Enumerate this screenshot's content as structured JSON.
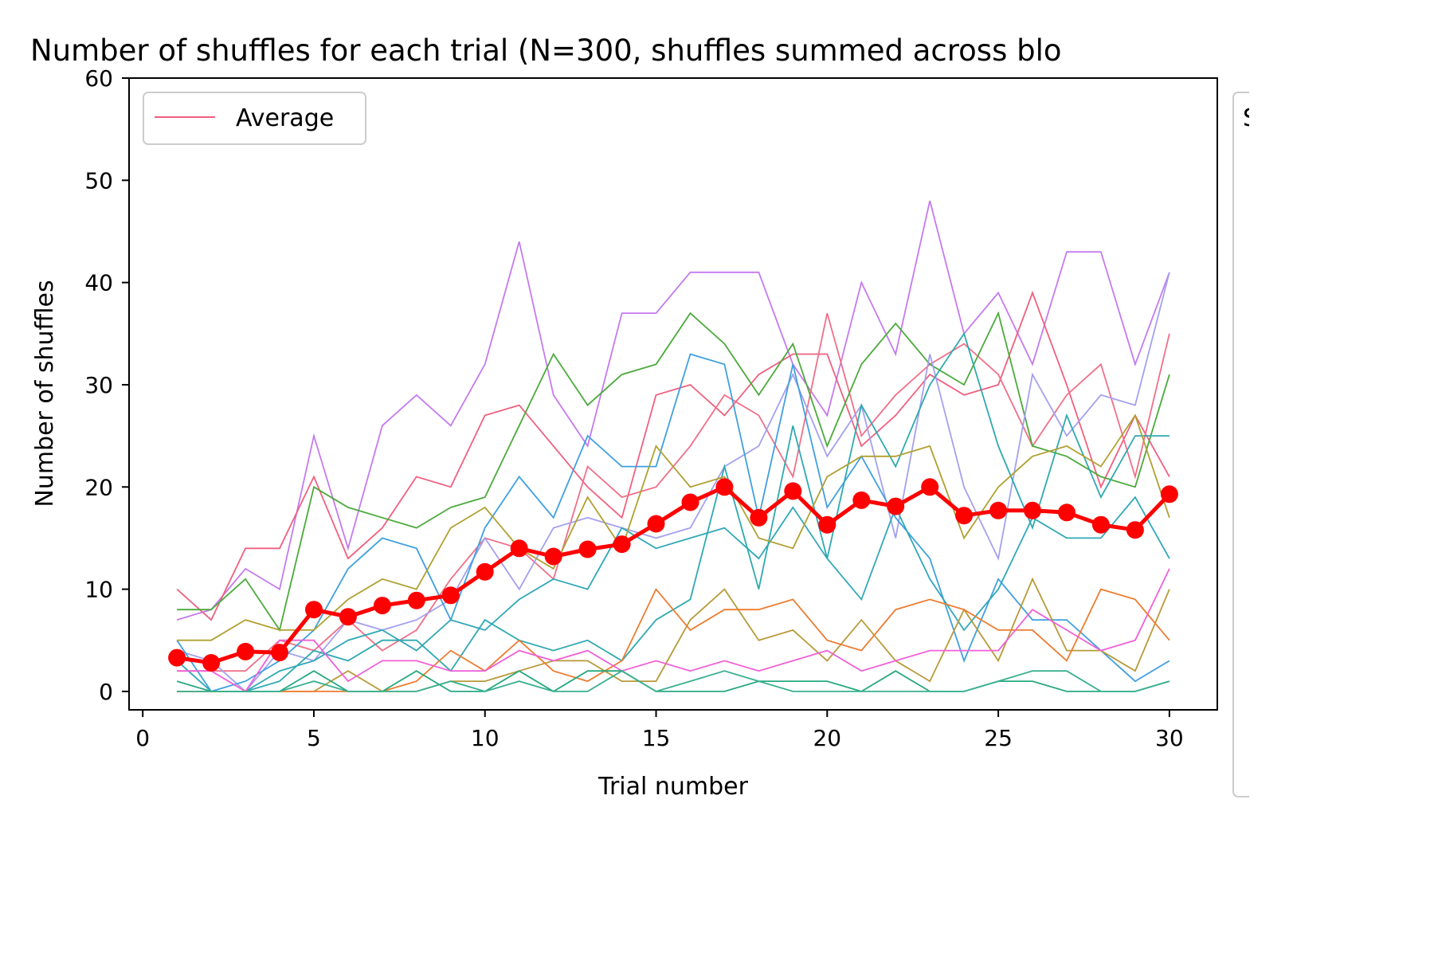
{
  "chart_data": {
    "type": "line",
    "title": "Number of shuffles for each trial (N=300, shuffles summed across blo",
    "xlabel": "Trial number",
    "ylabel": "Number of shuffles",
    "xlim": [
      -0.4,
      31.4
    ],
    "ylim": [
      -1.8,
      60
    ],
    "xticks": [
      0,
      5,
      10,
      15,
      20,
      25,
      30
    ],
    "yticks": [
      0,
      10,
      20,
      30,
      40,
      50,
      60
    ],
    "grid": false,
    "legend": {
      "placement": "upper-left",
      "entries": [
        {
          "label": "Average",
          "color": "#f0607f"
        }
      ]
    },
    "second_legend_fragment": "S",
    "x": [
      1,
      2,
      3,
      4,
      5,
      6,
      7,
      8,
      9,
      10,
      11,
      12,
      13,
      14,
      15,
      16,
      17,
      18,
      19,
      20,
      21,
      22,
      23,
      24,
      25,
      26,
      27,
      28,
      29,
      30
    ],
    "series": [
      {
        "color": "#c57af0",
        "values": [
          7,
          8,
          12,
          10,
          25,
          14,
          26,
          29,
          26,
          32,
          44,
          29,
          24,
          37,
          37,
          41,
          41,
          41,
          32,
          27,
          40,
          33,
          48,
          35,
          39,
          32,
          43,
          43,
          32,
          41
        ]
      },
      {
        "color": "#f0607f",
        "values": [
          10,
          7,
          14,
          14,
          21,
          13,
          16,
          21,
          20,
          27,
          28,
          24,
          20,
          17,
          29,
          30,
          27,
          31,
          33,
          33,
          24,
          27,
          31,
          29,
          30,
          39,
          30,
          20,
          27,
          21
        ]
      },
      {
        "color": "#f07088",
        "values": [
          2,
          2,
          2,
          5,
          4,
          7,
          4,
          6,
          11,
          15,
          14,
          11,
          22,
          19,
          20,
          24,
          29,
          27,
          21,
          37,
          25,
          29,
          32,
          34,
          31,
          24,
          29,
          32,
          21,
          35
        ]
      },
      {
        "color": "#4aaa3a",
        "values": [
          8,
          8,
          11,
          6,
          20,
          18,
          17,
          16,
          18,
          19,
          26,
          33,
          28,
          31,
          32,
          37,
          34,
          29,
          34,
          24,
          32,
          36,
          32,
          30,
          37,
          24,
          23,
          21,
          20,
          31
        ]
      },
      {
        "color": "#a4a0f0",
        "values": [
          4,
          3,
          0,
          4,
          3,
          7,
          6,
          7,
          9,
          15,
          10,
          16,
          17,
          16,
          15,
          16,
          22,
          24,
          31,
          23,
          28,
          15,
          33,
          20,
          13,
          31,
          25,
          29,
          28,
          41
        ]
      },
      {
        "color": "#3fa0e0",
        "values": [
          5,
          0,
          1,
          3,
          6,
          12,
          15,
          14,
          7,
          16,
          21,
          17,
          25,
          22,
          22,
          33,
          32,
          17,
          32,
          18,
          23,
          17,
          13,
          3,
          11,
          7,
          7,
          4,
          1,
          3
        ]
      },
      {
        "color": "#2ea9b0",
        "values": [
          0,
          0,
          0,
          1,
          4,
          3,
          5,
          5,
          2,
          7,
          5,
          4,
          5,
          3,
          7,
          9,
          22,
          10,
          26,
          13,
          28,
          22,
          30,
          35,
          24,
          16,
          27,
          19,
          25,
          25
        ]
      },
      {
        "color": "#30a8b8",
        "values": [
          3,
          0,
          0,
          2,
          3,
          5,
          6,
          4,
          7,
          6,
          9,
          11,
          10,
          16,
          14,
          15,
          16,
          13,
          18,
          13,
          9,
          18,
          11,
          6,
          10,
          17,
          15,
          15,
          19,
          13
        ]
      },
      {
        "color": "#b0a030",
        "values": [
          5,
          5,
          7,
          6,
          6,
          9,
          11,
          10,
          16,
          18,
          14,
          12,
          19,
          14,
          24,
          20,
          21,
          15,
          14,
          21,
          23,
          23,
          24,
          15,
          20,
          23,
          24,
          22,
          27,
          17
        ]
      },
      {
        "color": "#b89a38",
        "values": [
          0,
          0,
          0,
          0,
          0,
          2,
          0,
          0,
          1,
          1,
          2,
          3,
          3,
          1,
          1,
          7,
          10,
          5,
          6,
          3,
          7,
          3,
          1,
          8,
          3,
          11,
          4,
          4,
          2,
          10
        ]
      },
      {
        "color": "#ee7c30",
        "values": [
          0,
          0,
          0,
          0,
          0,
          0,
          0,
          1,
          4,
          2,
          5,
          2,
          1,
          3,
          10,
          6,
          8,
          8,
          9,
          5,
          4,
          8,
          9,
          8,
          6,
          6,
          3,
          10,
          9,
          5
        ]
      },
      {
        "color": "#f060d8",
        "values": [
          2,
          2,
          0,
          5,
          5,
          1,
          3,
          3,
          2,
          2,
          4,
          3,
          4,
          2,
          3,
          2,
          3,
          2,
          3,
          4,
          2,
          3,
          4,
          4,
          4,
          8,
          6,
          4,
          5,
          12
        ]
      },
      {
        "color": "#28a880",
        "values": [
          1,
          0,
          0,
          0,
          2,
          0,
          0,
          2,
          0,
          0,
          2,
          0,
          2,
          2,
          0,
          0,
          0,
          1,
          1,
          1,
          0,
          2,
          0,
          0,
          1,
          1,
          0,
          0,
          0,
          1
        ]
      },
      {
        "color": "#38b090",
        "values": [
          0,
          0,
          0,
          0,
          1,
          0,
          0,
          0,
          1,
          0,
          1,
          0,
          0,
          2,
          0,
          1,
          2,
          1,
          0,
          0,
          0,
          0,
          0,
          0,
          1,
          2,
          2,
          0,
          0,
          1
        ]
      }
    ],
    "average": {
      "name": "Average",
      "color": "#ff0000",
      "values": [
        3.3,
        2.8,
        3.9,
        3.8,
        8.0,
        7.3,
        8.4,
        8.9,
        9.4,
        11.7,
        14.0,
        13.2,
        13.9,
        14.4,
        16.4,
        18.5,
        20.0,
        17.0,
        19.6,
        16.3,
        18.7,
        18.1,
        20.0,
        17.2,
        17.7,
        17.7,
        17.5,
        16.3,
        15.8,
        19.3
      ]
    }
  }
}
